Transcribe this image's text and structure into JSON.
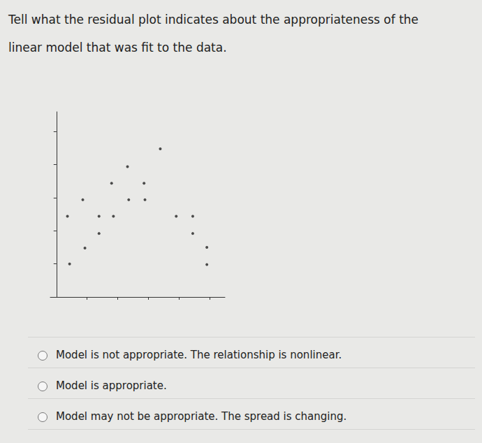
{
  "question": [
    "Tell what the residual plot indicates about the appropriateness of the",
    "linear model that was fit to the data."
  ],
  "chart_data": {
    "type": "scatter",
    "marker": "circle",
    "color": "#222222",
    "tick_labels": false,
    "grid": false,
    "x": [
      0.43,
      0.93,
      0.36,
      0.86,
      1.39,
      1.39,
      1.86,
      1.8,
      2.32,
      2.36,
      2.86,
      2.89,
      3.39,
      3.91,
      4.45,
      4.45,
      4.91,
      4.91
    ],
    "values": [
      1.0,
      1.48,
      2.44,
      2.94,
      2.44,
      1.92,
      2.44,
      3.44,
      3.94,
      2.94,
      3.44,
      2.94,
      4.48,
      2.44,
      2.44,
      1.92,
      1.5,
      0.98
    ],
    "xlim": [
      -0.2,
      5.5
    ],
    "xticks": [
      1,
      2,
      3,
      4,
      5
    ],
    "ylim": [
      0,
      5.6
    ],
    "yticks": [
      1,
      2,
      3,
      4,
      5
    ]
  },
  "options": [
    "Model is not appropriate. The relationship is nonlinear.",
    "Model is appropriate.",
    "Model may not be appropriate. The spread is changing."
  ]
}
